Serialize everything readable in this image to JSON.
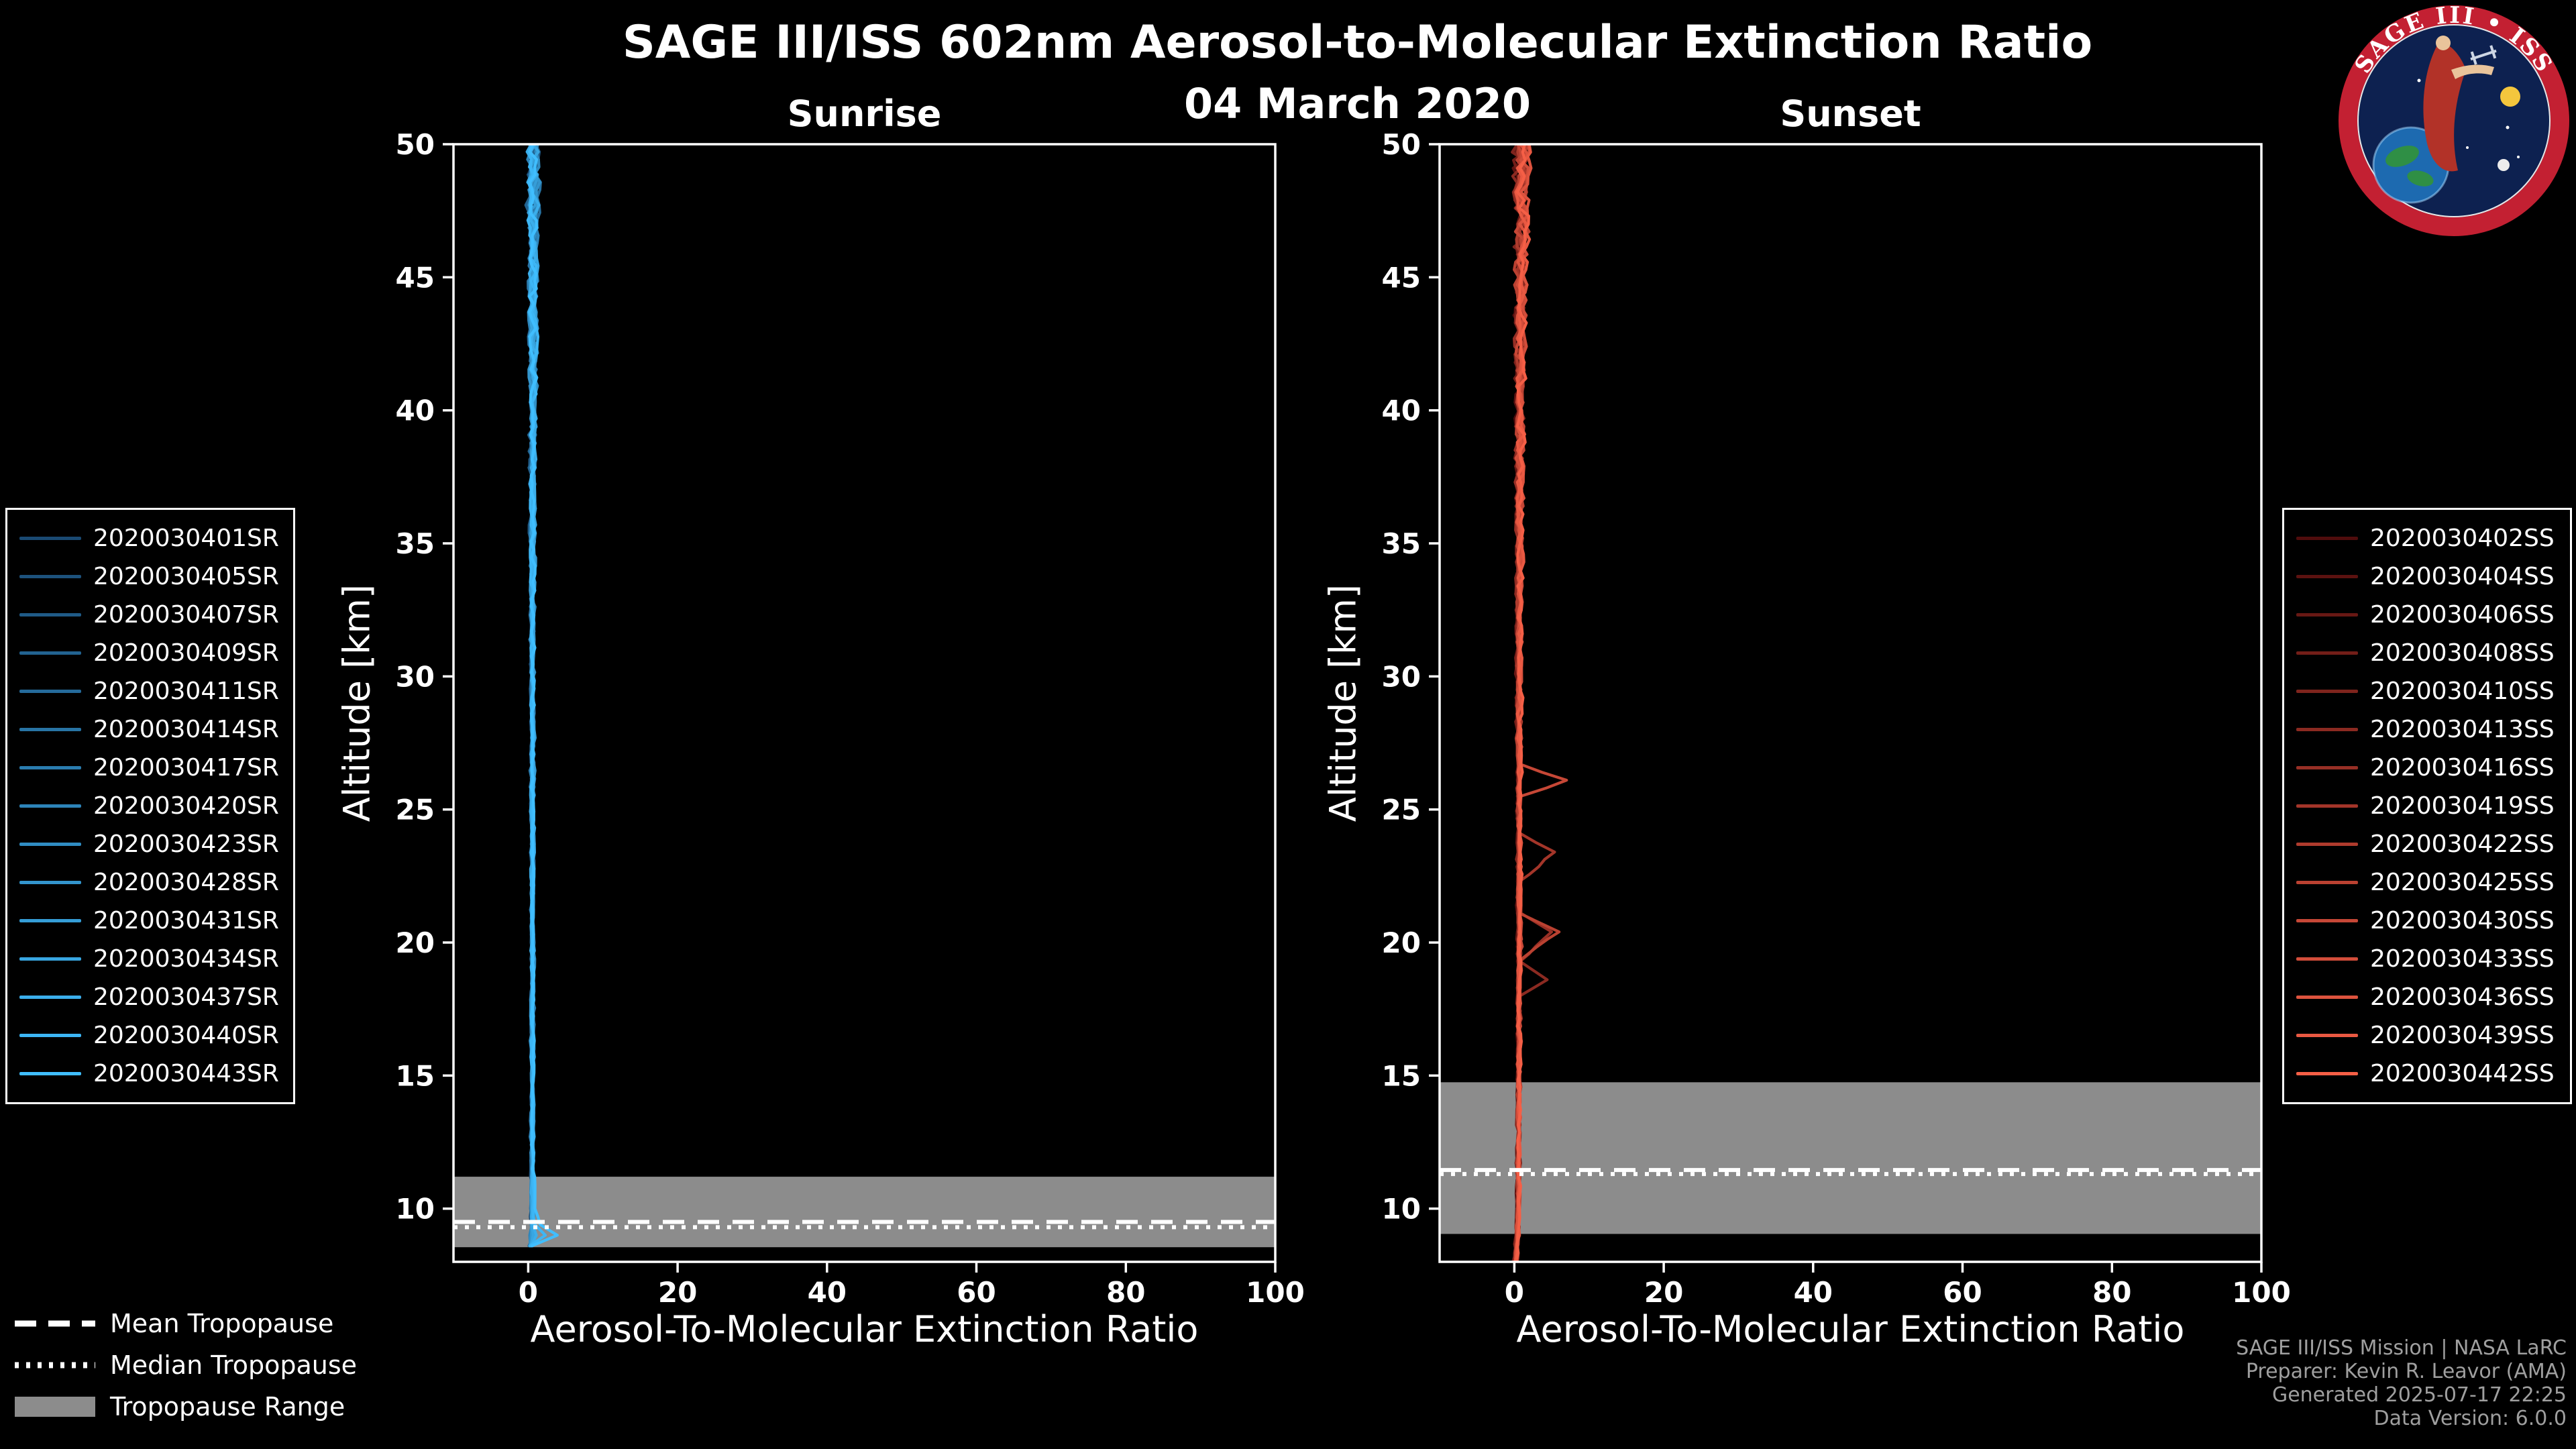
{
  "header": {
    "title": "SAGE III/ISS 602nm Aerosol-to-Molecular Extinction Ratio",
    "date": "04 March 2020"
  },
  "colors": {
    "background": "#000000",
    "frame": "#ffffff",
    "band": "#8c8c8c",
    "sunrise_accent": "#40beff",
    "sunset_accent": "#f55f46"
  },
  "tropopause_legend": {
    "mean": "Mean Tropopause",
    "median": "Median Tropopause",
    "range": "Tropopause Range"
  },
  "footer": {
    "mission": "SAGE III/ISS Mission | NASA LaRC",
    "preparer": "Preparer: Kevin R. Leavor (AMA)",
    "generated": "Generated 2025-07-17 22:25",
    "version": "Data Version: 6.0.0"
  },
  "logo": {
    "title": "SAGE III • ISS"
  },
  "chart_data": [
    {
      "id": "sunrise",
      "type": "line",
      "title": "Sunrise",
      "xlabel": "Aerosol-To-Molecular Extinction Ratio",
      "ylabel": "Altitude [km]",
      "xlim": [
        -10,
        100
      ],
      "ylim": [
        8,
        50
      ],
      "xticks": [
        0,
        20,
        40,
        60,
        80,
        100
      ],
      "yticks": [
        10,
        15,
        20,
        25,
        30,
        35,
        40,
        45,
        50
      ],
      "grid": false,
      "legend_position": "left-outside",
      "tropopause": {
        "mean": 9.5,
        "median": 9.3,
        "range": [
          8.55,
          11.2
        ]
      },
      "jitter": {
        "base": 0.16,
        "top": 0.75
      },
      "profile_altitudes": [
        8.6,
        9.0,
        9.4,
        10,
        13,
        16,
        20,
        24,
        28,
        32,
        36,
        40,
        44,
        46,
        48,
        50
      ],
      "series": [
        {
          "name": "2020030401SR",
          "color": "#1a4a73",
          "values": [
            0.3,
            0.5,
            0.4,
            0.4,
            0.5,
            0.6,
            0.5,
            0.6,
            0.5,
            0.4,
            0.6,
            0.5,
            0.7,
            0.6,
            0.8,
            0.4
          ]
        },
        {
          "name": "2020030405SR",
          "color": "#1d527d",
          "values": [
            0.2,
            0.6,
            0.5,
            0.5,
            0.4,
            0.5,
            0.6,
            0.5,
            0.4,
            0.6,
            0.5,
            0.6,
            0.5,
            0.8,
            0.3,
            0.9
          ]
        },
        {
          "name": "2020030407SR",
          "color": "#1f5b87",
          "values": [
            0.4,
            0.3,
            0.5,
            0.6,
            0.5,
            0.7,
            0.4,
            0.5,
            0.6,
            0.5,
            0.4,
            0.7,
            0.6,
            0.4,
            1.0,
            0.2
          ]
        },
        {
          "name": "2020030409SR",
          "color": "#226391",
          "values": [
            0.1,
            0.7,
            0.5,
            0.4,
            0.6,
            0.4,
            0.5,
            0.7,
            0.5,
            0.6,
            0.5,
            0.4,
            0.8,
            0.5,
            0.2,
            1.1
          ]
        },
        {
          "name": "2020030411SR",
          "color": "#256b9b",
          "values": [
            0.3,
            0.4,
            0.6,
            0.7,
            0.5,
            0.6,
            0.7,
            0.4,
            0.6,
            0.5,
            0.7,
            0.6,
            0.4,
            0.9,
            0.6,
            0.3
          ]
        },
        {
          "name": "2020030414SR",
          "color": "#2874a5",
          "values": [
            0.2,
            0.5,
            0.4,
            0.3,
            0.7,
            0.5,
            0.4,
            0.6,
            0.7,
            0.4,
            0.5,
            0.8,
            0.6,
            0.3,
            1.2,
            0.5
          ]
        },
        {
          "name": "2020030417SR",
          "color": "#2a7caf",
          "values": [
            0.4,
            0.6,
            0.5,
            0.5,
            0.4,
            0.8,
            0.6,
            0.5,
            0.4,
            0.7,
            0.6,
            0.5,
            0.9,
            0.7,
            0.4,
            1.0
          ]
        },
        {
          "name": "2020030420SR",
          "color": "#2d84b9",
          "values": [
            0.3,
            0.2,
            0.5,
            0.6,
            0.6,
            0.5,
            0.5,
            0.8,
            0.6,
            0.5,
            0.8,
            0.6,
            0.5,
            1.0,
            0.8,
            0.2
          ]
        },
        {
          "name": "2020030423SR",
          "color": "#308dc3",
          "values": [
            0.5,
            0.8,
            0.6,
            0.4,
            0.5,
            0.6,
            0.8,
            0.5,
            0.7,
            0.6,
            0.4,
            0.9,
            0.7,
            0.5,
            0.3,
            1.3
          ]
        },
        {
          "name": "2020030428SR",
          "color": "#3395cd",
          "values": [
            0.2,
            0.4,
            0.6,
            0.8,
            0.7,
            0.4,
            0.6,
            0.7,
            0.5,
            0.8,
            0.7,
            0.5,
            0.6,
            0.8,
            1.1,
            0.4
          ]
        },
        {
          "name": "2020030431SR",
          "color": "#359dd7",
          "values": [
            0.6,
            0.5,
            0.4,
            0.5,
            0.6,
            0.7,
            0.5,
            0.6,
            0.8,
            0.5,
            0.6,
            0.7,
            0.8,
            0.4,
            0.6,
            1.0
          ]
        },
        {
          "name": "2020030434SR",
          "color": "#38a6e1",
          "values": [
            0.3,
            0.7,
            0.5,
            0.6,
            0.5,
            0.5,
            0.7,
            0.4,
            0.6,
            0.7,
            0.8,
            0.6,
            0.5,
            1.1,
            0.5,
            0.7
          ]
        },
        {
          "name": "2020030437SR",
          "color": "#3baeeb",
          "values": [
            0.4,
            1.1,
            0.6,
            0.5,
            0.7,
            0.6,
            0.5,
            0.7,
            0.5,
            0.6,
            0.7,
            0.8,
            0.6,
            0.6,
            0.9,
            0.5
          ]
        },
        {
          "name": "2020030440SR",
          "color": "#3db6f5",
          "values": [
            0.2,
            2.3,
            0.9,
            0.7,
            0.6,
            0.5,
            0.6,
            0.5,
            0.7,
            0.5,
            0.5,
            0.7,
            0.9,
            0.8,
            0.4,
            0.8
          ]
        },
        {
          "name": "2020030443SR",
          "color": "#40beff",
          "values": [
            0.5,
            3.9,
            1.6,
            0.9,
            0.5,
            0.7,
            0.6,
            0.6,
            0.6,
            0.7,
            0.6,
            0.6,
            0.7,
            0.5,
            0.7,
            0.6
          ]
        }
      ]
    },
    {
      "id": "sunset",
      "type": "line",
      "title": "Sunset",
      "xlabel": "Aerosol-To-Molecular Extinction Ratio",
      "ylabel": "Altitude [km]",
      "xlim": [
        -10,
        100
      ],
      "ylim": [
        8,
        50
      ],
      "xticks": [
        0,
        20,
        40,
        60,
        80,
        100
      ],
      "yticks": [
        10,
        15,
        20,
        25,
        30,
        35,
        40,
        45,
        50
      ],
      "grid": false,
      "legend_position": "right-outside",
      "tropopause": {
        "mean": 11.45,
        "median": 11.3,
        "range": [
          9.05,
          14.75
        ]
      },
      "jitter": {
        "base": 0.22,
        "top": 1.0
      },
      "profile_altitudes": [
        8.0,
        9.0,
        10,
        12,
        14,
        16,
        18,
        18.6,
        19.3,
        20.4,
        21.1,
        22.3,
        23.4,
        24.1,
        25.5,
        26.1,
        26.7,
        28,
        31,
        34,
        37,
        40,
        43,
        45,
        47,
        48.5,
        50
      ],
      "series": [
        {
          "name": "2020030402SS",
          "color": "#500c0c",
          "values": [
            0.1,
            0.3,
            0.5,
            0.4,
            0.6,
            0.5,
            0.6,
            0.5,
            0.6,
            0.5,
            0.4,
            0.6,
            0.5,
            0.6,
            0.5,
            0.6,
            0.5,
            0.6,
            0.5,
            0.6,
            0.5,
            0.6,
            0.5,
            0.7,
            0.6,
            0.8,
            0.5
          ]
        },
        {
          "name": "2020030404SS",
          "color": "#5c1210",
          "values": [
            0.2,
            0.4,
            0.3,
            0.6,
            0.4,
            0.7,
            0.5,
            0.6,
            0.4,
            0.6,
            0.5,
            0.4,
            0.6,
            0.5,
            0.6,
            0.5,
            0.6,
            0.5,
            0.6,
            0.5,
            0.6,
            0.5,
            0.7,
            0.5,
            0.9,
            0.4,
            1.0
          ]
        },
        {
          "name": "2020030406SS",
          "color": "#681814",
          "values": [
            -0.2,
            0.5,
            0.6,
            0.3,
            0.7,
            0.4,
            0.6,
            0.5,
            0.7,
            0.4,
            0.6,
            0.7,
            0.5,
            0.4,
            0.7,
            0.4,
            0.7,
            0.6,
            0.4,
            0.7,
            0.4,
            0.7,
            0.6,
            0.8,
            0.4,
            1.1,
            0.3
          ]
        },
        {
          "name": "2020030408SS",
          "color": "#731e18",
          "values": [
            0.3,
            0.2,
            0.4,
            0.7,
            0.5,
            0.6,
            0.4,
            0.7,
            0.5,
            0.7,
            0.4,
            0.6,
            0.5,
            0.7,
            0.4,
            0.7,
            0.5,
            0.4,
            0.7,
            0.4,
            0.7,
            0.5,
            0.8,
            0.6,
            1.0,
            0.3,
            1.2
          ]
        },
        {
          "name": "2020030410SS",
          "color": "#7f241d",
          "values": [
            0.1,
            0.6,
            0.5,
            0.5,
            0.6,
            0.5,
            0.7,
            0.4,
            0.6,
            0.5,
            0.7,
            0.6,
            0.7,
            0.5,
            0.6,
            0.6,
            0.5,
            0.7,
            0.5,
            0.6,
            0.5,
            0.8,
            0.6,
            0.9,
            0.5,
            1.3,
            0.4
          ]
        },
        {
          "name": "2020030413SS",
          "color": "#8b2a21",
          "values": [
            0.2,
            0.3,
            0.6,
            0.4,
            0.5,
            0.7,
            0.8,
            4.4,
            0.7,
            0.8,
            0.5,
            0.6,
            0.5,
            0.7,
            0.6,
            0.5,
            0.7,
            0.6,
            0.6,
            0.5,
            0.6,
            0.6,
            0.9,
            0.5,
            1.1,
            0.5,
            0.9
          ]
        },
        {
          "name": "2020030416SS",
          "color": "#972f25",
          "values": [
            0.0,
            0.4,
            0.5,
            0.6,
            0.6,
            0.5,
            0.6,
            0.7,
            0.8,
            5.0,
            0.9,
            0.6,
            0.5,
            0.7,
            0.5,
            0.7,
            0.6,
            0.5,
            0.6,
            0.7,
            0.5,
            0.7,
            0.6,
            1.0,
            0.6,
            1.4,
            0.6
          ]
        },
        {
          "name": "2020030419SS",
          "color": "#a33529",
          "values": [
            0.3,
            0.5,
            0.4,
            0.5,
            0.7,
            0.6,
            0.5,
            0.6,
            0.7,
            0.8,
            0.6,
            0.7,
            5.4,
            0.8,
            0.6,
            0.6,
            0.7,
            0.6,
            0.7,
            0.5,
            0.7,
            0.6,
            1.0,
            0.7,
            1.2,
            0.4,
            1.5
          ]
        },
        {
          "name": "2020030422SS",
          "color": "#ae3b2d",
          "values": [
            0.2,
            0.4,
            0.6,
            0.6,
            0.5,
            0.7,
            0.6,
            0.5,
            0.6,
            0.7,
            0.5,
            0.7,
            0.6,
            0.7,
            0.6,
            0.8,
            0.5,
            0.7,
            0.5,
            0.8,
            0.6,
            0.8,
            0.7,
            1.1,
            0.5,
            1.6,
            0.7
          ]
        },
        {
          "name": "2020030425SS",
          "color": "#ba4131",
          "values": [
            0.1,
            0.6,
            0.4,
            0.7,
            0.6,
            0.5,
            0.7,
            0.8,
            0.6,
            6.0,
            0.7,
            0.5,
            0.8,
            0.6,
            0.5,
            0.8,
            0.6,
            0.5,
            0.8,
            0.6,
            0.8,
            0.7,
            1.1,
            0.6,
            1.4,
            0.6,
            1.8
          ]
        },
        {
          "name": "2020030430SS",
          "color": "#c64736",
          "values": [
            0.4,
            0.3,
            0.7,
            0.5,
            0.7,
            0.6,
            0.8,
            0.7,
            0.8,
            0.9,
            0.7,
            0.6,
            0.8,
            0.7,
            0.9,
            7.0,
            0.8,
            0.7,
            0.6,
            0.7,
            0.7,
            0.9,
            0.7,
            1.2,
            0.8,
            1.7,
            0.5
          ]
        },
        {
          "name": "2020030433SS",
          "color": "#d24d3a",
          "values": [
            0.2,
            0.5,
            0.5,
            0.6,
            0.5,
            0.8,
            0.6,
            0.7,
            0.6,
            0.8,
            0.7,
            0.8,
            0.7,
            0.6,
            0.8,
            0.7,
            0.6,
            0.8,
            0.7,
            0.8,
            0.6,
            0.8,
            1.2,
            0.8,
            1.5,
            0.7,
            1.9
          ]
        },
        {
          "name": "2020030436SS",
          "color": "#dd533e",
          "values": [
            0.3,
            0.4,
            0.6,
            0.5,
            0.8,
            0.6,
            0.7,
            0.6,
            0.7,
            0.6,
            0.8,
            0.6,
            0.8,
            0.7,
            0.6,
            0.8,
            0.7,
            0.6,
            0.8,
            0.7,
            0.9,
            0.8,
            0.9,
            1.3,
            0.7,
            1.8,
            0.8
          ]
        },
        {
          "name": "2020030439SS",
          "color": "#e95942",
          "values": [
            0.1,
            0.7,
            0.5,
            0.8,
            0.6,
            0.7,
            0.5,
            0.8,
            0.6,
            0.7,
            0.8,
            0.7,
            0.7,
            0.8,
            0.7,
            0.7,
            0.8,
            0.7,
            0.7,
            0.9,
            0.7,
            1.0,
            0.8,
            1.0,
            1.6,
            0.8,
            2.0
          ]
        },
        {
          "name": "2020030442SS",
          "color": "#f55f46",
          "values": [
            0.2,
            0.5,
            0.7,
            0.6,
            0.7,
            0.8,
            0.7,
            0.7,
            0.9,
            0.8,
            0.7,
            0.9,
            0.8,
            0.7,
            0.9,
            0.8,
            0.9,
            0.9,
            0.8,
            0.8,
            1.0,
            0.9,
            1.2,
            0.9,
            1.9,
            1.0,
            1.4
          ]
        }
      ]
    }
  ]
}
